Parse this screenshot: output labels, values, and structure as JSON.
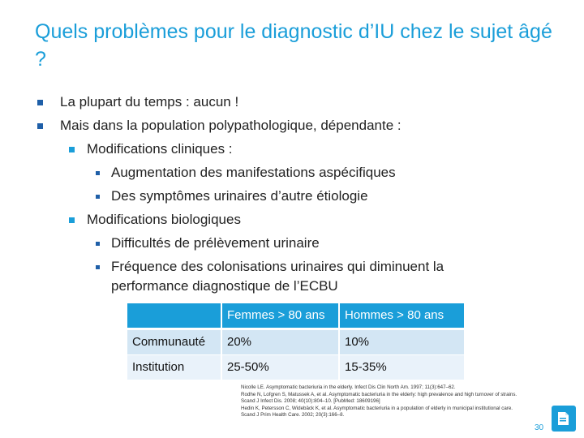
{
  "title": "Quels problèmes pour le diagnostic d’IU chez le sujet âgé ?",
  "bullets": [
    "La plupart du temps : aucun !",
    "Mais dans la population polypathologique, dépendante :",
    "Modifications cliniques :",
    "Augmentation des manifestations aspécifiques",
    "Des symptômes urinaires d’autre étiologie",
    "Modifications biologiques",
    "Difficultés de prélèvement urinaire",
    "Fréquence des colonisations urinaires qui diminuent la",
    "performance diagnostique de l’ECBU"
  ],
  "table": {
    "headers": [
      "",
      "Femmes > 80 ans",
      "Hommes > 80 ans"
    ],
    "rows": [
      [
        "Communauté",
        "20%",
        "10%"
      ],
      [
        "Institution",
        "25-50%",
        "15-35%"
      ]
    ]
  },
  "references": [
    "Nicolle LE. Asymptomatic bacteriuria in the elderly. Infect Dis Clin North Am. 1997; 11(3):647–62.",
    "Rodhe N, Lofgren S, Matussek A, et al. Asymptomatic bacteriuria in the elderly: high prevalence and high turnover of strains. Scand J Infect Dis. 2008; 40(10):804–10. [PubMed: 18609196]",
    "Hedin K, Petersson C, Widebäck K, et al. Asymptomatic bacteriuria in a population of elderly in municipal institutional care. Scand J Prim Health Care. 2002; 20(3):166–8."
  ],
  "page_number": "30",
  "logo_icon": "document-logo-icon",
  "colors": {
    "accent": "#1a9ed9",
    "bullet_dark": "#1f5fa8",
    "row_a": "#d3e6f4",
    "row_b": "#e9f2fa"
  }
}
